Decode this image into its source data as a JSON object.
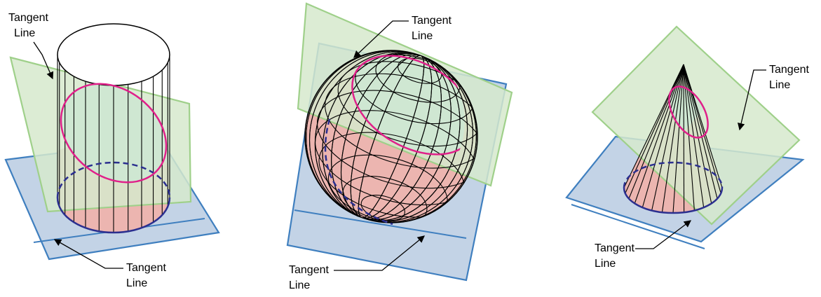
{
  "labels": [
    [
      "Tangent",
      "Line"
    ],
    [
      "Tangent",
      "Line"
    ],
    [
      "Tangent",
      "Line"
    ],
    [
      "Tangent",
      "Line"
    ],
    [
      "Tangent",
      "Line"
    ],
    [
      "Tangent",
      "Line"
    ]
  ]
}
